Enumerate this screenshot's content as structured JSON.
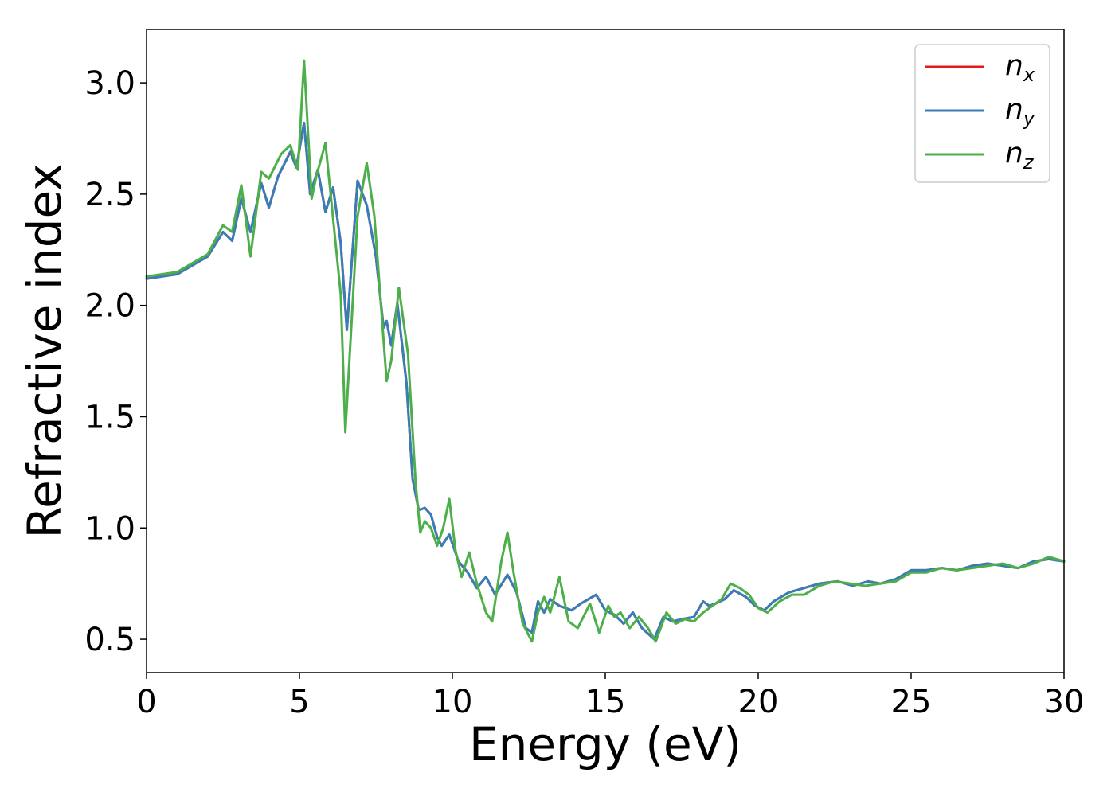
{
  "chart_data": {
    "type": "line",
    "title": "",
    "xlabel": "Energy (eV)",
    "ylabel": "Refractive index",
    "xlim": [
      0,
      30
    ],
    "ylim": [
      0.35,
      3.24
    ],
    "xticks": [
      0,
      5,
      10,
      15,
      20,
      25,
      30
    ],
    "yticks": [
      0.5,
      1.0,
      1.5,
      2.0,
      2.5,
      3.0
    ],
    "xtick_labels": [
      "0",
      "5",
      "10",
      "15",
      "20",
      "25",
      "30"
    ],
    "ytick_labels": [
      "0.5",
      "1.0",
      "1.5",
      "2.0",
      "2.5",
      "3.0"
    ],
    "grid": false,
    "legend_position": "top-right",
    "series": [
      {
        "name": "n_x",
        "label_main": "n",
        "label_sub": "x",
        "color": "#e41a1c",
        "x": [
          0,
          1,
          2,
          2.5,
          2.8,
          3.1,
          3.4,
          3.75,
          4.0,
          4.3,
          4.7,
          4.9,
          5.15,
          5.35,
          5.6,
          5.85,
          6.1,
          6.35,
          6.55,
          6.9,
          7.2,
          7.5,
          7.75,
          7.85,
          8.0,
          8.2,
          8.5,
          8.7,
          8.9,
          9.1,
          9.3,
          9.5,
          9.65,
          9.9,
          10.2,
          10.5,
          10.8,
          11.1,
          11.4,
          11.8,
          12.1,
          12.4,
          12.6,
          12.8,
          13.0,
          13.2,
          13.5,
          13.9,
          14.2,
          14.7,
          15.0,
          15.3,
          15.6,
          15.9,
          16.2,
          16.6,
          16.9,
          17.2,
          17.5,
          17.9,
          18.2,
          18.4,
          18.6,
          18.9,
          19.2,
          19.6,
          19.9,
          20.2,
          20.5,
          21.0,
          21.5,
          22.0,
          22.6,
          23.1,
          23.6,
          24.0,
          24.5,
          25.0,
          25.5,
          26.0,
          26.5,
          27.0,
          27.5,
          28.0,
          28.5,
          29.0,
          29.5,
          30.0
        ],
        "values": [
          2.12,
          2.14,
          2.22,
          2.33,
          2.29,
          2.48,
          2.33,
          2.55,
          2.44,
          2.58,
          2.69,
          2.62,
          2.82,
          2.5,
          2.61,
          2.42,
          2.53,
          2.28,
          1.89,
          2.56,
          2.45,
          2.22,
          1.9,
          1.93,
          1.82,
          2.01,
          1.65,
          1.22,
          1.08,
          1.09,
          1.06,
          0.96,
          0.92,
          0.97,
          0.85,
          0.8,
          0.73,
          0.78,
          0.7,
          0.79,
          0.71,
          0.55,
          0.53,
          0.67,
          0.62,
          0.68,
          0.65,
          0.63,
          0.66,
          0.7,
          0.63,
          0.61,
          0.57,
          0.62,
          0.55,
          0.5,
          0.6,
          0.58,
          0.59,
          0.6,
          0.67,
          0.65,
          0.66,
          0.68,
          0.72,
          0.69,
          0.65,
          0.63,
          0.67,
          0.71,
          0.73,
          0.75,
          0.76,
          0.74,
          0.76,
          0.75,
          0.77,
          0.81,
          0.81,
          0.82,
          0.81,
          0.83,
          0.84,
          0.83,
          0.82,
          0.85,
          0.86,
          0.85
        ]
      },
      {
        "name": "n_y",
        "label_main": "n",
        "label_sub": "y",
        "color": "#377eb8",
        "x": [
          0,
          1,
          2,
          2.5,
          2.8,
          3.1,
          3.4,
          3.75,
          4.0,
          4.3,
          4.7,
          4.9,
          5.15,
          5.35,
          5.6,
          5.85,
          6.1,
          6.35,
          6.55,
          6.9,
          7.2,
          7.5,
          7.75,
          7.85,
          8.0,
          8.2,
          8.5,
          8.7,
          8.9,
          9.1,
          9.3,
          9.5,
          9.65,
          9.9,
          10.2,
          10.5,
          10.8,
          11.1,
          11.4,
          11.8,
          12.1,
          12.4,
          12.6,
          12.8,
          13.0,
          13.2,
          13.5,
          13.9,
          14.2,
          14.7,
          15.0,
          15.3,
          15.6,
          15.9,
          16.2,
          16.6,
          16.9,
          17.2,
          17.5,
          17.9,
          18.2,
          18.4,
          18.6,
          18.9,
          19.2,
          19.6,
          19.9,
          20.2,
          20.5,
          21.0,
          21.5,
          22.0,
          22.6,
          23.1,
          23.6,
          24.0,
          24.5,
          25.0,
          25.5,
          26.0,
          26.5,
          27.0,
          27.5,
          28.0,
          28.5,
          29.0,
          29.5,
          30.0
        ],
        "values": [
          2.12,
          2.14,
          2.22,
          2.33,
          2.29,
          2.48,
          2.33,
          2.55,
          2.44,
          2.58,
          2.69,
          2.62,
          2.82,
          2.5,
          2.61,
          2.42,
          2.53,
          2.28,
          1.89,
          2.56,
          2.45,
          2.22,
          1.9,
          1.93,
          1.82,
          2.01,
          1.65,
          1.22,
          1.08,
          1.09,
          1.06,
          0.96,
          0.92,
          0.97,
          0.85,
          0.8,
          0.73,
          0.78,
          0.7,
          0.79,
          0.71,
          0.55,
          0.53,
          0.67,
          0.62,
          0.68,
          0.65,
          0.63,
          0.66,
          0.7,
          0.63,
          0.61,
          0.57,
          0.62,
          0.55,
          0.5,
          0.6,
          0.58,
          0.59,
          0.6,
          0.67,
          0.65,
          0.66,
          0.68,
          0.72,
          0.69,
          0.65,
          0.63,
          0.67,
          0.71,
          0.73,
          0.75,
          0.76,
          0.74,
          0.76,
          0.75,
          0.77,
          0.81,
          0.81,
          0.82,
          0.81,
          0.83,
          0.84,
          0.83,
          0.82,
          0.85,
          0.86,
          0.85
        ]
      },
      {
        "name": "n_z",
        "label_main": "n",
        "label_sub": "z",
        "color": "#4daf4a",
        "x": [
          0,
          1,
          2,
          2.5,
          2.8,
          3.1,
          3.4,
          3.75,
          4.0,
          4.4,
          4.7,
          4.95,
          5.15,
          5.4,
          5.55,
          5.85,
          6.1,
          6.35,
          6.5,
          6.9,
          7.2,
          7.45,
          7.85,
          8.0,
          8.25,
          8.55,
          8.8,
          8.95,
          9.1,
          9.3,
          9.5,
          9.7,
          9.9,
          10.1,
          10.3,
          10.55,
          10.8,
          11.1,
          11.3,
          11.6,
          11.8,
          12.0,
          12.3,
          12.6,
          12.8,
          13.0,
          13.2,
          13.5,
          13.8,
          14.1,
          14.5,
          14.8,
          15.1,
          15.3,
          15.5,
          15.8,
          16.1,
          16.4,
          16.65,
          17.0,
          17.3,
          17.6,
          17.9,
          18.2,
          18.5,
          18.8,
          19.1,
          19.4,
          19.7,
          20.0,
          20.3,
          20.7,
          21.1,
          21.5,
          22.0,
          22.5,
          23.0,
          23.5,
          24.0,
          24.5,
          25.0,
          25.5,
          26.0,
          26.5,
          27.0,
          27.5,
          28.0,
          28.5,
          29.0,
          29.5,
          30.0
        ],
        "values": [
          2.13,
          2.15,
          2.23,
          2.36,
          2.33,
          2.54,
          2.22,
          2.6,
          2.57,
          2.68,
          2.72,
          2.61,
          3.1,
          2.48,
          2.58,
          2.73,
          2.39,
          2.05,
          1.43,
          2.4,
          2.64,
          2.4,
          1.66,
          1.75,
          2.08,
          1.78,
          1.2,
          0.98,
          1.03,
          1.0,
          0.92,
          1.0,
          1.13,
          0.9,
          0.78,
          0.89,
          0.75,
          0.62,
          0.58,
          0.85,
          0.98,
          0.8,
          0.57,
          0.49,
          0.62,
          0.69,
          0.62,
          0.78,
          0.58,
          0.55,
          0.66,
          0.53,
          0.65,
          0.6,
          0.62,
          0.55,
          0.6,
          0.55,
          0.49,
          0.62,
          0.57,
          0.59,
          0.58,
          0.62,
          0.65,
          0.68,
          0.75,
          0.73,
          0.7,
          0.64,
          0.62,
          0.67,
          0.7,
          0.7,
          0.74,
          0.76,
          0.75,
          0.74,
          0.75,
          0.76,
          0.8,
          0.8,
          0.82,
          0.81,
          0.82,
          0.83,
          0.84,
          0.82,
          0.84,
          0.87,
          0.85
        ]
      }
    ]
  }
}
